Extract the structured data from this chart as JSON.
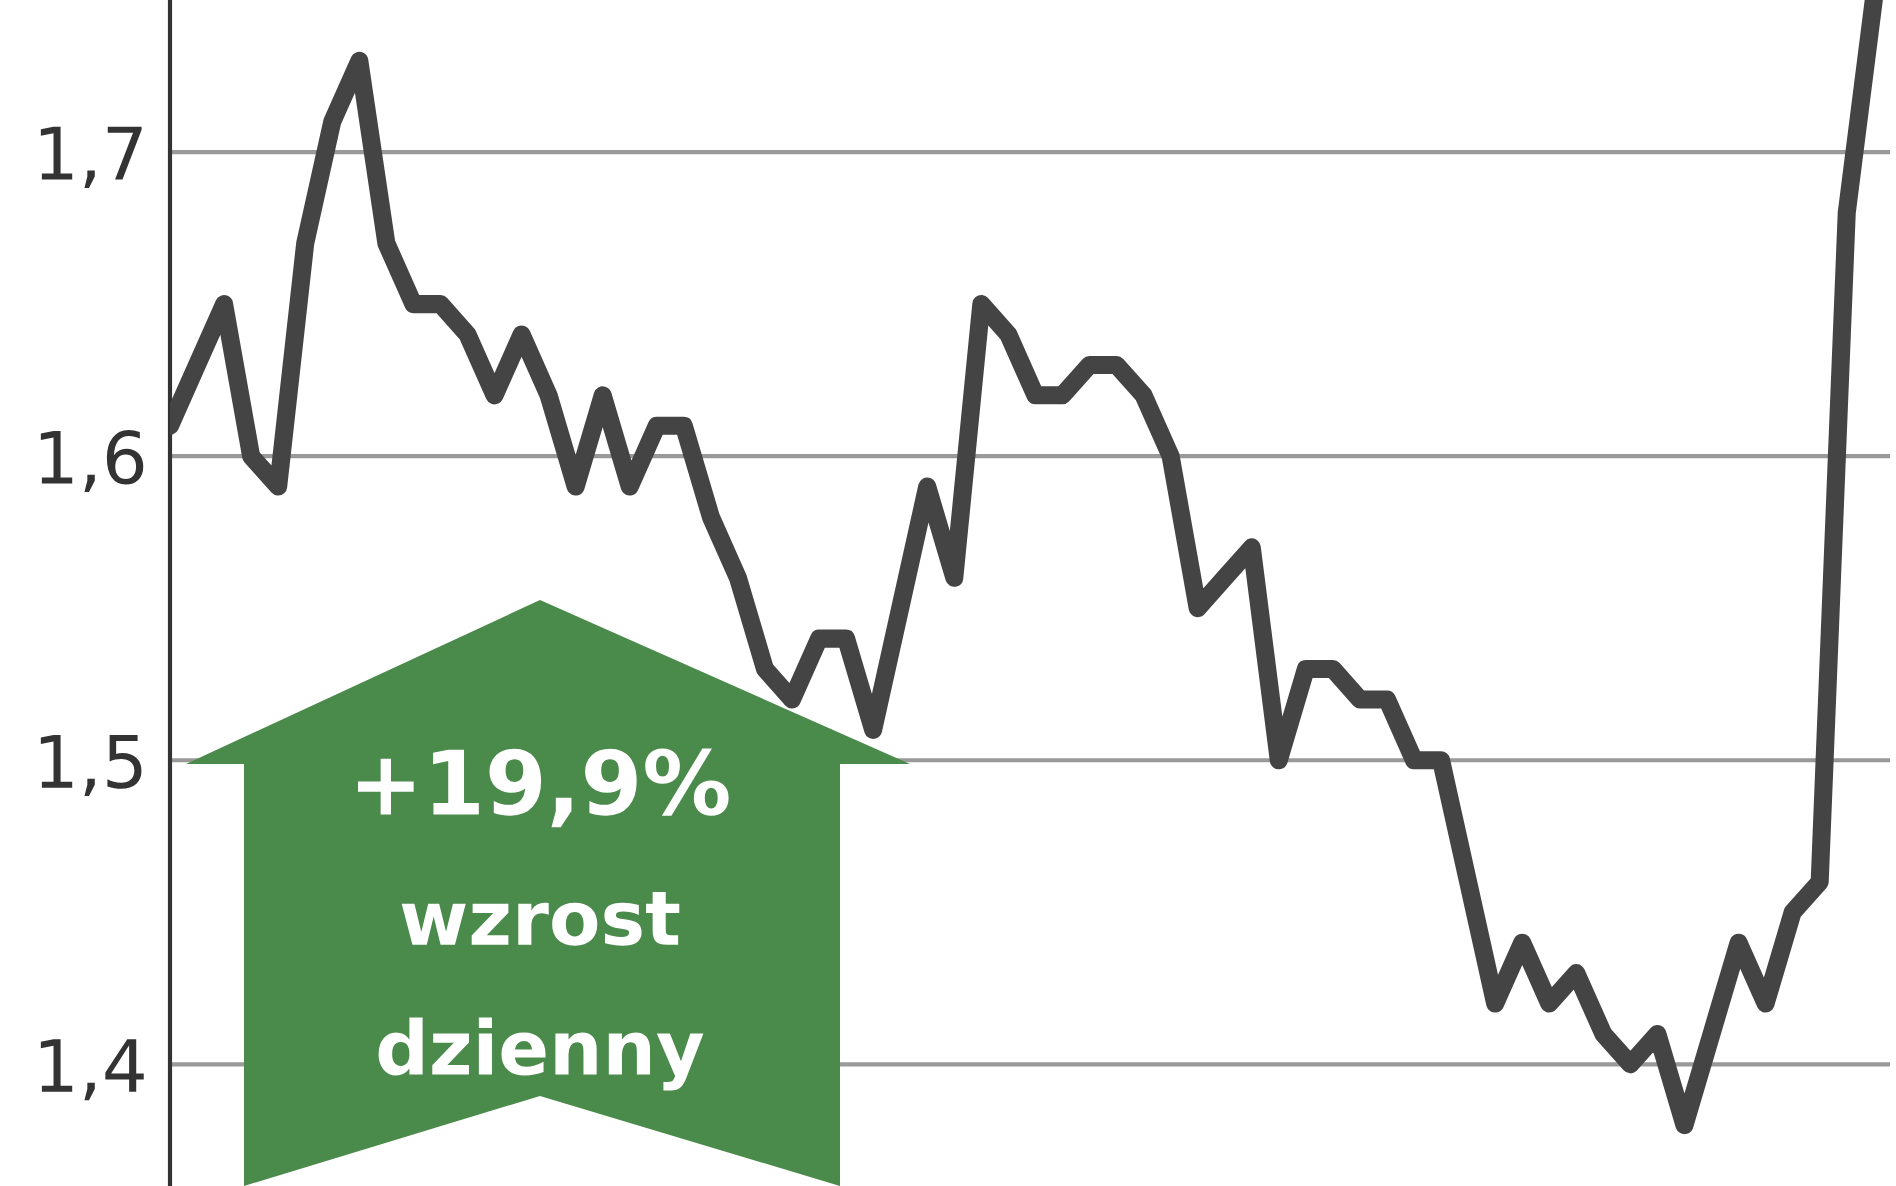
{
  "chart_data": {
    "type": "line",
    "categories": [
      null,
      null,
      null,
      null,
      null,
      null,
      null,
      null,
      null,
      null,
      null,
      null,
      null,
      null,
      null,
      null,
      null,
      null,
      null,
      null,
      null,
      null,
      null,
      null,
      null,
      null,
      null,
      null,
      null,
      null,
      null,
      null,
      null,
      null,
      null,
      null,
      null,
      null,
      null,
      null,
      null,
      null,
      null,
      null,
      null,
      null,
      null,
      null,
      null,
      null,
      null,
      null,
      null,
      null,
      null,
      null,
      null,
      null,
      null,
      null,
      null,
      null,
      null,
      null
    ],
    "series": [
      {
        "color": "#444444",
        "values": [
          1.61,
          1.63,
          1.65,
          1.6,
          1.59,
          1.67,
          1.71,
          1.73,
          1.67,
          1.65,
          1.65,
          1.64,
          1.62,
          1.64,
          1.62,
          1.59,
          1.62,
          1.59,
          1.61,
          1.61,
          1.58,
          1.56,
          1.53,
          1.52,
          1.54,
          1.54,
          1.51,
          1.55,
          1.59,
          1.56,
          1.65,
          1.64,
          1.62,
          1.62,
          1.63,
          1.63,
          1.62,
          1.6,
          1.55,
          1.56,
          1.57,
          1.5,
          1.53,
          1.53,
          1.52,
          1.52,
          1.5,
          1.5,
          1.46,
          1.42,
          1.44,
          1.42,
          1.43,
          1.41,
          1.4,
          1.41,
          1.38,
          1.41,
          1.44,
          1.42,
          1.45,
          1.46,
          1.68,
          1.75
        ]
      }
    ],
    "ylim": [
      1.36,
      1.75
    ],
    "yticks": [
      {
        "value": 1.4,
        "label": "1,4"
      },
      {
        "value": 1.5,
        "label": "1,5"
      },
      {
        "value": 1.6,
        "label": "1,6"
      },
      {
        "value": 1.7,
        "label": "1,7"
      }
    ],
    "grid": "y",
    "tick_labels": "y",
    "annotations": [
      "+19,9%",
      "wzrost",
      "dzienny"
    ]
  }
}
